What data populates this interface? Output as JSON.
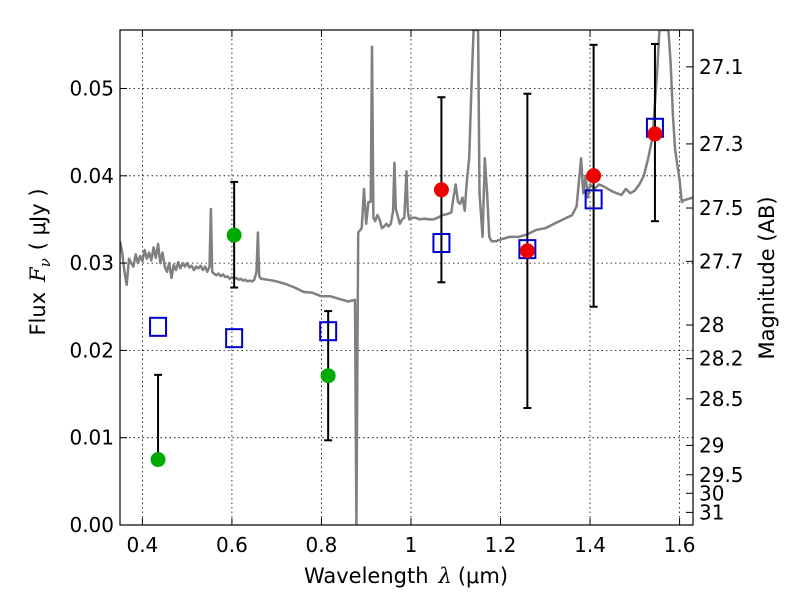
{
  "chart_data": {
    "type": "scatter",
    "title": "",
    "xlabel_text": "Wavelength",
    "xlabel_symbol": "λ",
    "xlabel_unit": "(μm)",
    "ylabel_text": "Flux",
    "ylabel_symbol": "F",
    "ylabel_subscript": "ν",
    "ylabel_unit": "( μJy )",
    "y2label": "Magnitude (AB)",
    "xlim": [
      0.35,
      1.63
    ],
    "ylim": [
      0.0,
      0.0567
    ],
    "grid": true,
    "x_ticks": [
      0.4,
      0.6,
      0.8,
      1.0,
      1.2,
      1.4,
      1.6
    ],
    "x_tick_labels": [
      "0.4",
      "0.6",
      "0.8",
      "1",
      "1.2",
      "1.4",
      "1.6"
    ],
    "y_ticks": [
      0.0,
      0.01,
      0.02,
      0.03,
      0.04,
      0.05
    ],
    "y_tick_labels": [
      "0.00",
      "0.01",
      "0.02",
      "0.03",
      "0.04",
      "0.05"
    ],
    "magnitude_ticks": [
      "27.1",
      "27.3",
      "27.5",
      "27.7",
      "28",
      "28.2",
      "28.5",
      "29",
      "29.5",
      "30",
      "31"
    ],
    "green_points": [
      {
        "x": 0.435,
        "y": 0.0075,
        "err_low": 0.0075,
        "err_high": 0.0172
      },
      {
        "x": 0.605,
        "y": 0.0332,
        "err_low": 0.0272,
        "err_high": 0.0393
      },
      {
        "x": 0.815,
        "y": 0.0171,
        "err_low": 0.0097,
        "err_high": 0.0245
      }
    ],
    "red_points": [
      {
        "x": 1.068,
        "y": 0.0384,
        "err_low": 0.0278,
        "err_high": 0.049
      },
      {
        "x": 1.26,
        "y": 0.0314,
        "err_low": 0.0134,
        "err_high": 0.0494
      },
      {
        "x": 1.408,
        "y": 0.04,
        "err_low": 0.025,
        "err_high": 0.055
      },
      {
        "x": 1.545,
        "y": 0.0448,
        "err_low": 0.0348,
        "err_high": 0.0551
      }
    ],
    "model_squares": [
      {
        "x": 0.435,
        "y": 0.0227
      },
      {
        "x": 0.605,
        "y": 0.0214
      },
      {
        "x": 0.815,
        "y": 0.0222
      },
      {
        "x": 1.068,
        "y": 0.0323
      },
      {
        "x": 1.26,
        "y": 0.0316
      },
      {
        "x": 1.408,
        "y": 0.0373
      },
      {
        "x": 1.545,
        "y": 0.0455
      }
    ],
    "spectrum": [
      [
        0.35,
        0.0325
      ],
      [
        0.355,
        0.0312
      ],
      [
        0.36,
        0.029
      ],
      [
        0.365,
        0.0275
      ],
      [
        0.37,
        0.0305
      ],
      [
        0.375,
        0.03
      ],
      [
        0.38,
        0.0296
      ],
      [
        0.385,
        0.031
      ],
      [
        0.39,
        0.03
      ],
      [
        0.395,
        0.0308
      ],
      [
        0.4,
        0.0302
      ],
      [
        0.405,
        0.0315
      ],
      [
        0.41,
        0.0305
      ],
      [
        0.415,
        0.0312
      ],
      [
        0.42,
        0.0303
      ],
      [
        0.425,
        0.0318
      ],
      [
        0.43,
        0.0306
      ],
      [
        0.435,
        0.0322
      ],
      [
        0.44,
        0.03
      ],
      [
        0.445,
        0.0312
      ],
      [
        0.45,
        0.0296
      ],
      [
        0.455,
        0.029
      ],
      [
        0.46,
        0.03
      ],
      [
        0.465,
        0.0283
      ],
      [
        0.47,
        0.0298
      ],
      [
        0.475,
        0.0292
      ],
      [
        0.48,
        0.0301
      ],
      [
        0.485,
        0.0294
      ],
      [
        0.49,
        0.03
      ],
      [
        0.495,
        0.0296
      ],
      [
        0.5,
        0.03
      ],
      [
        0.505,
        0.0295
      ],
      [
        0.51,
        0.0297
      ],
      [
        0.515,
        0.0292
      ],
      [
        0.52,
        0.0296
      ],
      [
        0.525,
        0.0294
      ],
      [
        0.53,
        0.0297
      ],
      [
        0.535,
        0.0292
      ],
      [
        0.54,
        0.0296
      ],
      [
        0.545,
        0.029
      ],
      [
        0.55,
        0.0296
      ],
      [
        0.553,
        0.0362
      ],
      [
        0.556,
        0.029
      ],
      [
        0.56,
        0.0288
      ],
      [
        0.565,
        0.0286
      ],
      [
        0.57,
        0.0288
      ],
      [
        0.575,
        0.0285
      ],
      [
        0.58,
        0.0287
      ],
      [
        0.585,
        0.0284
      ],
      [
        0.59,
        0.0285
      ],
      [
        0.595,
        0.0282
      ],
      [
        0.6,
        0.0284
      ],
      [
        0.605,
        0.0282
      ],
      [
        0.61,
        0.0283
      ],
      [
        0.615,
        0.0281
      ],
      [
        0.62,
        0.0282
      ],
      [
        0.625,
        0.028
      ],
      [
        0.63,
        0.0281
      ],
      [
        0.635,
        0.0279
      ],
      [
        0.64,
        0.028
      ],
      [
        0.645,
        0.0279
      ],
      [
        0.65,
        0.0281
      ],
      [
        0.655,
        0.029
      ],
      [
        0.658,
        0.0335
      ],
      [
        0.661,
        0.0285
      ],
      [
        0.665,
        0.0282
      ],
      [
        0.68,
        0.0281
      ],
      [
        0.7,
        0.0279
      ],
      [
        0.72,
        0.0276
      ],
      [
        0.74,
        0.0272
      ],
      [
        0.76,
        0.0267
      ],
      [
        0.78,
        0.0266
      ],
      [
        0.8,
        0.0262
      ],
      [
        0.82,
        0.0262
      ],
      [
        0.84,
        0.0259
      ],
      [
        0.86,
        0.0256
      ],
      [
        0.875,
        0.0258
      ],
      [
        0.878,
        0.0
      ],
      [
        0.882,
        0.0335
      ],
      [
        0.89,
        0.034
      ],
      [
        0.895,
        0.0385
      ],
      [
        0.9,
        0.0345
      ],
      [
        0.905,
        0.037
      ],
      [
        0.91,
        0.037
      ],
      [
        0.913,
        0.0548
      ],
      [
        0.916,
        0.0352
      ],
      [
        0.92,
        0.0348
      ],
      [
        0.925,
        0.0355
      ],
      [
        0.93,
        0.035
      ],
      [
        0.935,
        0.034
      ],
      [
        0.94,
        0.0342
      ],
      [
        0.945,
        0.0345
      ],
      [
        0.95,
        0.0342
      ],
      [
        0.955,
        0.0345
      ],
      [
        0.96,
        0.036
      ],
      [
        0.963,
        0.0415
      ],
      [
        0.966,
        0.0362
      ],
      [
        0.97,
        0.0355
      ],
      [
        0.975,
        0.0345
      ],
      [
        0.98,
        0.035
      ],
      [
        0.985,
        0.0352
      ],
      [
        0.99,
        0.0405
      ],
      [
        0.993,
        0.036
      ],
      [
        0.996,
        0.035
      ],
      [
        1.0,
        0.0352
      ],
      [
        1.01,
        0.0352
      ],
      [
        1.02,
        0.035
      ],
      [
        1.03,
        0.0351
      ],
      [
        1.04,
        0.035
      ],
      [
        1.05,
        0.035
      ],
      [
        1.06,
        0.0352
      ],
      [
        1.07,
        0.0355
      ],
      [
        1.08,
        0.0356
      ],
      [
        1.09,
        0.0358
      ],
      [
        1.095,
        0.0375
      ],
      [
        1.1,
        0.039
      ],
      [
        1.105,
        0.037
      ],
      [
        1.11,
        0.0368
      ],
      [
        1.115,
        0.0375
      ],
      [
        1.12,
        0.036
      ],
      [
        1.125,
        0.0395
      ],
      [
        1.13,
        0.042
      ],
      [
        1.135,
        0.05
      ],
      [
        1.14,
        0.0567
      ],
      [
        1.145,
        0.0567
      ],
      [
        1.15,
        0.0567
      ],
      [
        1.153,
        0.038
      ],
      [
        1.16,
        0.033
      ],
      [
        1.165,
        0.042
      ],
      [
        1.17,
        0.038
      ],
      [
        1.175,
        0.033
      ],
      [
        1.18,
        0.0325
      ],
      [
        1.19,
        0.0325
      ],
      [
        1.2,
        0.0327
      ],
      [
        1.22,
        0.033
      ],
      [
        1.24,
        0.033
      ],
      [
        1.26,
        0.0333
      ],
      [
        1.28,
        0.0338
      ],
      [
        1.3,
        0.034
      ],
      [
        1.32,
        0.0345
      ],
      [
        1.34,
        0.035
      ],
      [
        1.36,
        0.0355
      ],
      [
        1.37,
        0.0365
      ],
      [
        1.38,
        0.042
      ],
      [
        1.385,
        0.038
      ],
      [
        1.39,
        0.04
      ],
      [
        1.395,
        0.0375
      ],
      [
        1.4,
        0.039
      ],
      [
        1.41,
        0.0385
      ],
      [
        1.42,
        0.039
      ],
      [
        1.43,
        0.0388
      ],
      [
        1.44,
        0.0385
      ],
      [
        1.45,
        0.0382
      ],
      [
        1.46,
        0.038
      ],
      [
        1.47,
        0.0378
      ],
      [
        1.48,
        0.0385
      ],
      [
        1.49,
        0.038
      ],
      [
        1.5,
        0.0383
      ],
      [
        1.51,
        0.039
      ],
      [
        1.52,
        0.04
      ],
      [
        1.53,
        0.042
      ],
      [
        1.54,
        0.0445
      ],
      [
        1.55,
        0.052
      ],
      [
        1.555,
        0.0567
      ],
      [
        1.575,
        0.0567
      ],
      [
        1.58,
        0.053
      ],
      [
        1.585,
        0.047
      ],
      [
        1.59,
        0.043
      ],
      [
        1.6,
        0.0395
      ],
      [
        1.605,
        0.037
      ],
      [
        1.61,
        0.0372
      ],
      [
        1.63,
        0.0375
      ]
    ],
    "colors": {
      "spectrum": "#808080",
      "green": "#00aa00",
      "red": "#ee0000",
      "squares": "#0000cc",
      "error_bars": "#000000",
      "grid": "#000000"
    }
  }
}
